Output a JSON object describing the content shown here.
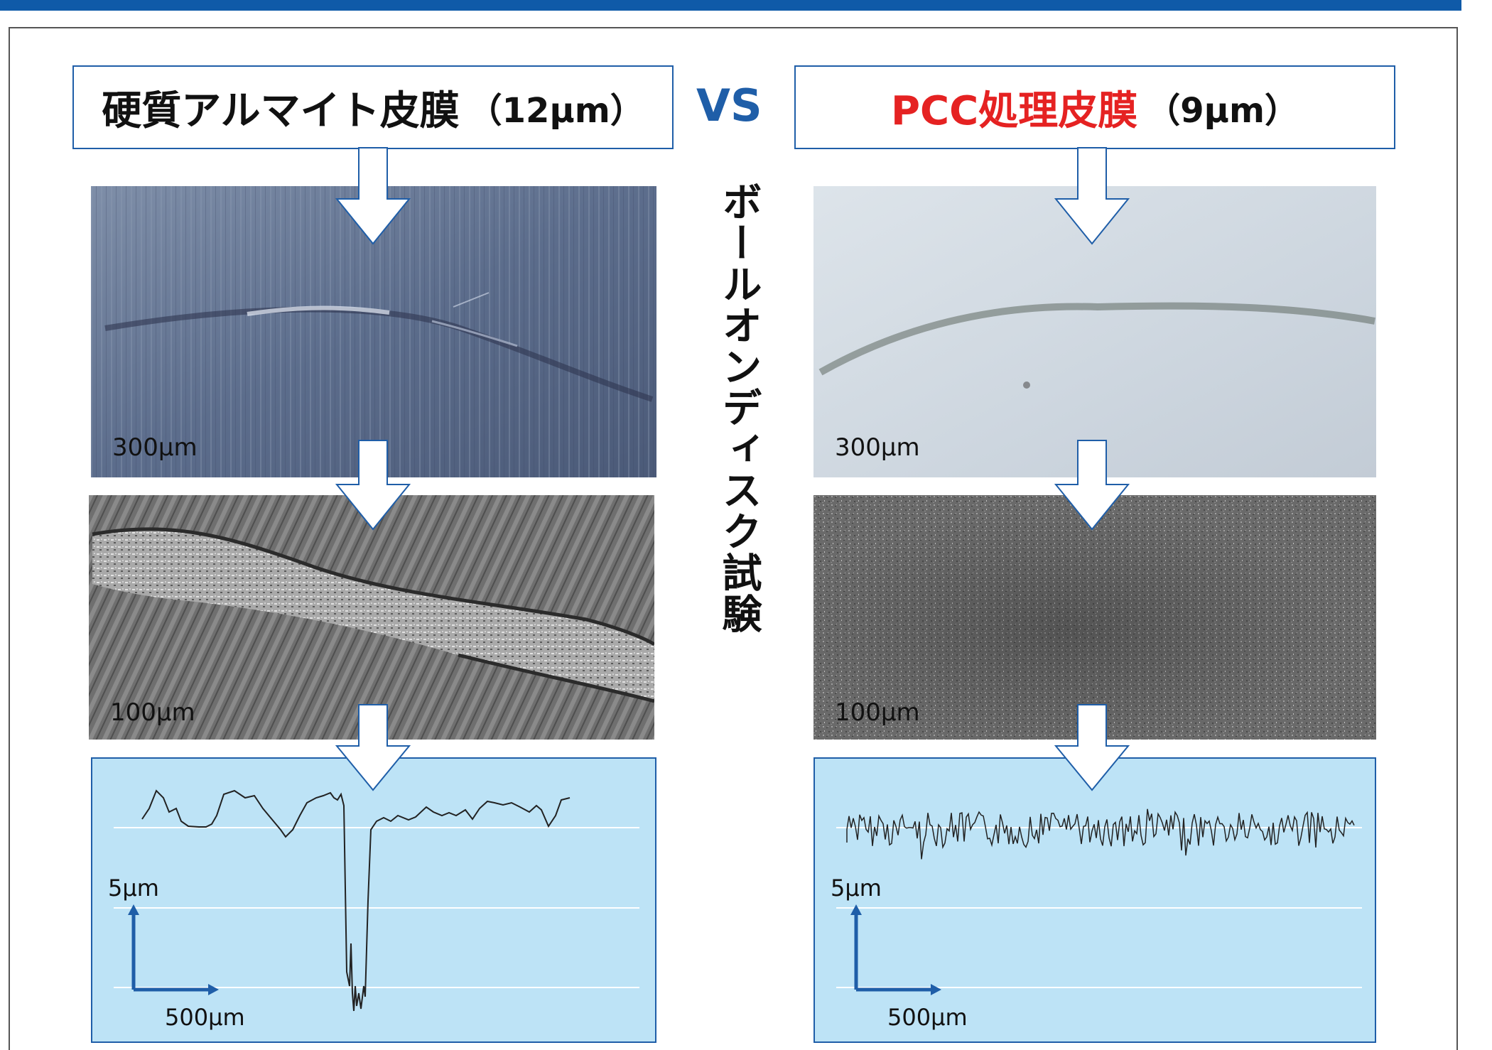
{
  "colors": {
    "brand_blue": "#1f5ea8",
    "highlight_red": "#e52222",
    "graph_bg": "#bde3f6"
  },
  "left": {
    "title_main": "硬質アルマイト皮膜",
    "title_thickness": "（12μm）",
    "photo1_scale": "300μm",
    "photo2_scale": "100μm",
    "graph_y_scale": "5μm",
    "graph_x_scale": "500μm"
  },
  "vs_label": "VS",
  "test_name": "ボールオンディスク試験",
  "right": {
    "title_main": "PCC処理皮膜",
    "title_thickness": "（9μm）",
    "photo1_scale": "300μm",
    "photo2_scale": "100μm",
    "graph_y_scale": "5μm",
    "graph_x_scale": "500μm"
  }
}
